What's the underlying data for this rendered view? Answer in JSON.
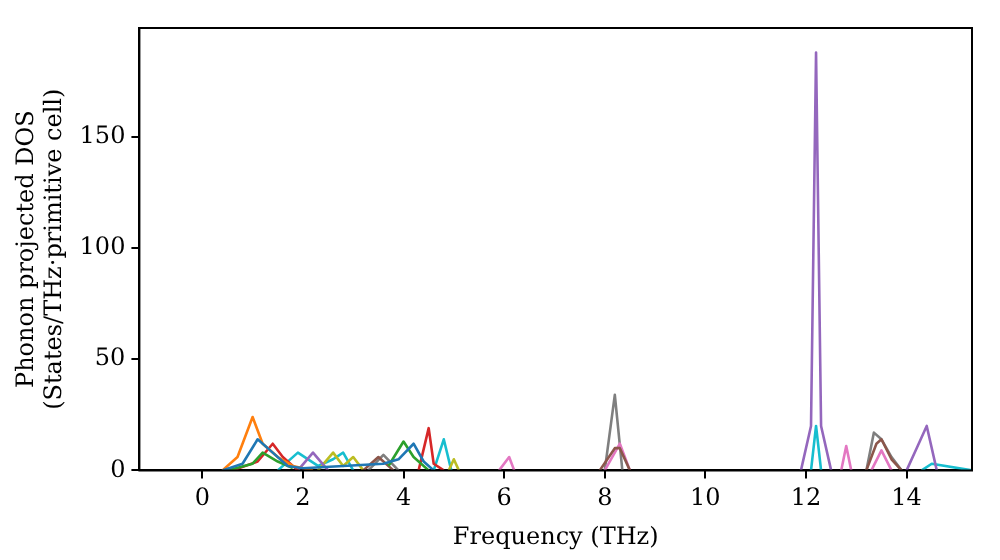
{
  "chart_data": {
    "type": "line",
    "xlabel": "Frequency (THz)",
    "ylabel": "Phonon projected DOS\n(States/THz·primitive cell)",
    "xlim": [
      -1.25,
      15.3
    ],
    "ylim": [
      0,
      199
    ],
    "xticks": [
      0,
      2,
      4,
      6,
      8,
      10,
      12,
      14
    ],
    "yticks": [
      0,
      50,
      100,
      150
    ],
    "grid": false,
    "legend": false,
    "marker": "none",
    "line_style": "solid",
    "series": [
      {
        "color": "#1f77b4",
        "x": [
          0.4,
          0.8,
          1.1,
          1.4,
          1.7,
          2.0,
          3.6,
          3.9,
          4.2,
          4.4,
          4.6
        ],
        "values": [
          0,
          3,
          14,
          8,
          2,
          1,
          3,
          5,
          12,
          4,
          0
        ]
      },
      {
        "color": "#ff7f0e",
        "x": [
          0.4,
          0.7,
          1.0,
          1.2,
          1.5,
          1.8,
          2.2
        ],
        "values": [
          0,
          6,
          24,
          12,
          6,
          2,
          0
        ]
      },
      {
        "color": "#2ca02c",
        "x": [
          0.5,
          1.0,
          1.2,
          1.5,
          1.8,
          2.5,
          3.7,
          4.0,
          4.2,
          4.5
        ],
        "values": [
          0,
          3,
          8,
          4,
          1,
          null,
          2,
          13,
          6,
          0
        ]
      },
      {
        "color": "#d62728",
        "x": [
          0.6,
          1.1,
          1.4,
          1.6,
          1.9,
          3,
          4.3,
          4.5,
          4.6,
          4.8
        ],
        "values": [
          0,
          4,
          12,
          6,
          0,
          null,
          0,
          19,
          3,
          0
        ]
      },
      {
        "color": "#9467bd",
        "x": [
          1.9,
          2.2,
          2.5,
          7,
          11.9,
          12.1,
          12.2,
          12.3,
          12.5,
          13,
          14.0,
          14.2,
          14.4,
          14.6
        ],
        "values": [
          0,
          8,
          0,
          null,
          0,
          20,
          188,
          20,
          0,
          null,
          0,
          10,
          20,
          0
        ]
      },
      {
        "color": "#8c564b",
        "x": [
          3.2,
          3.5,
          3.8,
          6,
          7.9,
          8.2,
          8.3,
          8.5,
          11,
          13.2,
          13.4,
          13.5,
          13.7,
          13.9
        ],
        "values": [
          0,
          6,
          0,
          null,
          0,
          10,
          10,
          0,
          null,
          0,
          12,
          14,
          5,
          0
        ]
      },
      {
        "color": "#e377c2",
        "x": [
          5.9,
          6.1,
          6.2,
          7,
          8.0,
          8.3,
          8.5,
          10,
          12.7,
          12.8,
          12.9,
          13.1,
          13.3,
          13.5,
          13.7
        ],
        "values": [
          0,
          6,
          0,
          null,
          0,
          12,
          0,
          null,
          0,
          11,
          0,
          null,
          0,
          9,
          0
        ]
      },
      {
        "color": "#7f7f7f",
        "x": [
          3.3,
          3.6,
          3.9,
          6,
          8.0,
          8.2,
          8.35,
          11,
          13.2,
          13.35,
          13.5,
          13.7,
          13.9
        ],
        "values": [
          0,
          7,
          0,
          null,
          0,
          34,
          0,
          null,
          0,
          17,
          14,
          6,
          0
        ]
      },
      {
        "color": "#bcbd22",
        "x": [
          2.3,
          2.6,
          2.8,
          3.0,
          3.2,
          4.0,
          4.9,
          5.0,
          5.1
        ],
        "values": [
          0,
          8,
          2,
          6,
          0,
          null,
          0,
          5,
          0
        ]
      },
      {
        "color": "#17becf",
        "x": [
          1.5,
          1.9,
          2.3,
          2.6,
          2.8,
          3.0,
          4.0,
          4.6,
          4.8,
          4.95,
          8,
          12.1,
          12.2,
          12.3,
          13,
          14.3,
          14.5,
          15.3
        ],
        "values": [
          0,
          8,
          2,
          5,
          8,
          0,
          null,
          0,
          14,
          0,
          null,
          0,
          20,
          0,
          null,
          0,
          3,
          0
        ]
      }
    ]
  }
}
